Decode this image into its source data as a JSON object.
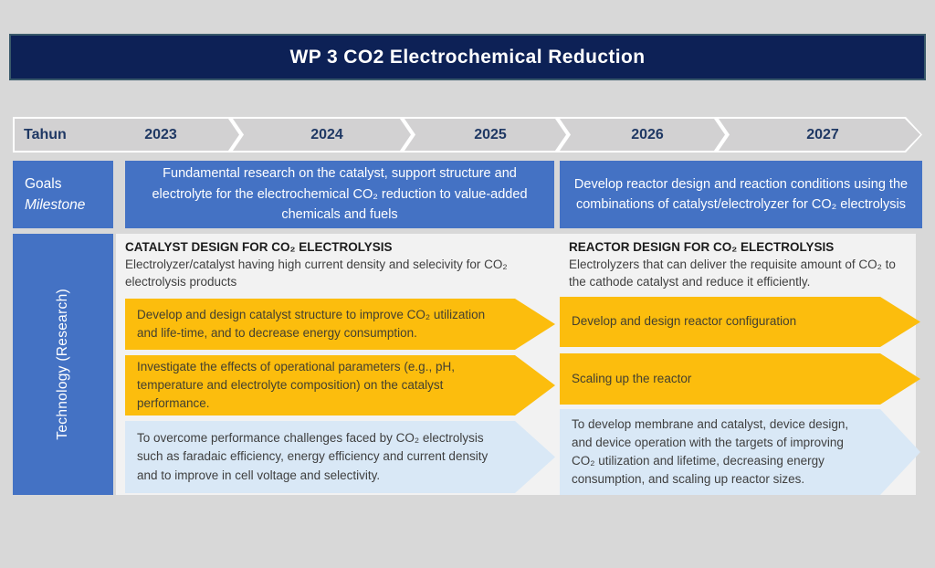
{
  "title": "WP 3 CO2 Electrochemical Reduction",
  "colors": {
    "title_bar_bg": "#0d2156",
    "title_bar_border": "#39596a",
    "accent_blue": "#4472c4",
    "arrow_yellow": "#fcbd0d",
    "arrow_light_blue": "#d9e8f6",
    "timeline_gray": "#d2d1d2",
    "year_text": "#1f3864",
    "panel_bg": "#f2f2f2"
  },
  "timeline": {
    "label": "Tahun",
    "years": [
      "2023",
      "2024",
      "2025",
      "2026",
      "2027"
    ]
  },
  "goals": {
    "row_label_line1": "Goals",
    "row_label_line2": "Milestone",
    "left": "Fundamental research on the catalyst, support structure and electrolyte for the electrochemical CO₂ reduction to value-added chemicals and fuels",
    "right": "Develop reactor design and reaction conditions using the combinations of catalyst/electrolyzer for CO₂ electrolysis"
  },
  "technology": {
    "sidebar_label": "Technology (Research)",
    "left": {
      "heading": "CATALYST DESIGN FOR CO₂ ELECTROLYSIS",
      "subheading": "Electrolyzer/catalyst having high current density and selecivity for CO₂ electrolysis products",
      "arrows": [
        {
          "style": "yellow",
          "text": "Develop and design catalyst structure to improve CO₂ utilization and life-time, and to decrease energy consumption."
        },
        {
          "style": "yellow",
          "text": "Investigate the effects of operational parameters (e.g., pH, temperature and electrolyte composition) on the catalyst performance."
        },
        {
          "style": "lightblue",
          "text": "To overcome performance challenges faced by CO₂ electrolysis such as faradaic efficiency, energy efficiency and current density and to improve in cell voltage and selectivity."
        }
      ]
    },
    "right": {
      "heading": "REACTOR DESIGN FOR CO₂ ELECTROLYSIS",
      "subheading": "Electrolyzers that can deliver the requisite amount of CO₂ to the cathode catalyst and reduce it efficiently.",
      "arrows": [
        {
          "style": "yellow",
          "text": "Develop and design reactor configuration"
        },
        {
          "style": "yellow",
          "text": "Scaling up the reactor"
        },
        {
          "style": "lightblue",
          "text": "To develop membrane and catalyst, device design, and device operation with the targets of improving CO₂ utilization and lifetime, decreasing energy consumption, and scaling up reactor sizes."
        }
      ]
    }
  }
}
